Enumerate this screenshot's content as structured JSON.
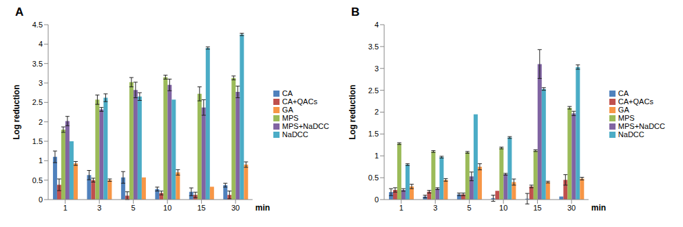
{
  "chart_data": [
    {
      "type": "bar",
      "title": "A",
      "x_label": "min",
      "y_label": "Log reduction",
      "categories": [
        "1",
        "3",
        "5",
        "10",
        "15",
        "30"
      ],
      "ylim": [
        0,
        4.5
      ],
      "yticks": [
        0,
        0.5,
        1,
        1.5,
        2,
        2.5,
        3,
        3.5,
        4,
        4.5
      ],
      "grid": false,
      "legend": "right",
      "series": [
        {
          "name": "CA",
          "color": "#4f81bd",
          "values": [
            1.1,
            0.63,
            0.57,
            0.27,
            0.2,
            0.37
          ],
          "errors": [
            0.15,
            0.12,
            0.15,
            0.05,
            0.1,
            0.05
          ]
        },
        {
          "name": "CA+QACs",
          "color": "#c0504d",
          "values": [
            0.38,
            0.5,
            0.1,
            0.17,
            0.12,
            0.12
          ],
          "errors": [
            0.15,
            0.05,
            0.1,
            0.05,
            0.07,
            0.1
          ]
        },
        {
          "name": "MPS",
          "color": "#9bbb59",
          "values": [
            1.8,
            2.57,
            3.02,
            3.15,
            2.72,
            3.13
          ],
          "errors": [
            0.07,
            0.12,
            0.12,
            0.05,
            0.18,
            0.05
          ]
        },
        {
          "name": "MPS+NaDCC",
          "color": "#8064a2",
          "values": [
            2.02,
            2.32,
            2.82,
            2.95,
            2.37,
            2.77
          ],
          "errors": [
            0.12,
            0.05,
            0.2,
            0.15,
            0.2,
            0.15
          ]
        },
        {
          "name": "NaDCC",
          "color": "#4bacc6",
          "values": [
            1.5,
            2.62,
            2.65,
            2.57,
            3.9,
            4.25
          ],
          "errors": [
            0,
            0.1,
            0.1,
            0,
            0.03,
            0.03
          ]
        },
        {
          "name": "GA",
          "color": "#f79646",
          "values": [
            0.93,
            0.5,
            0.57,
            0.7,
            0.33,
            0.9
          ],
          "errors": [
            0.05,
            0.03,
            0,
            0.07,
            0,
            0.07
          ]
        }
      ]
    },
    {
      "type": "bar",
      "title": "B",
      "x_label": "min",
      "y_label": "Log reduction",
      "categories": [
        "1",
        "3",
        "5",
        "10",
        "15",
        "30"
      ],
      "ylim": [
        0,
        4
      ],
      "yticks": [
        0,
        0.5,
        1,
        1.5,
        2,
        2.5,
        3,
        3.5,
        4
      ],
      "grid": false,
      "legend": "right",
      "series": [
        {
          "name": "CA",
          "color": "#4f81bd",
          "values": [
            0.17,
            0.07,
            0.12,
            0.03,
            0.02,
            0.07
          ],
          "errors": [
            0.08,
            0.03,
            0.03,
            0.07,
            0.12,
            0
          ]
        },
        {
          "name": "CA+QACs",
          "color": "#c0504d",
          "values": [
            0.22,
            0.18,
            0.12,
            0.2,
            0.3,
            0.45
          ],
          "errors": [
            0.05,
            0.03,
            0.03,
            0,
            0.03,
            0.12
          ]
        },
        {
          "name": "MPS",
          "color": "#9bbb59",
          "values": [
            1.28,
            1.1,
            1.08,
            1.18,
            1.12,
            2.1
          ],
          "errors": [
            0.02,
            0.02,
            0.02,
            0.02,
            0.02,
            0.03
          ]
        },
        {
          "name": "MPS+NaDCC",
          "color": "#8064a2",
          "values": [
            0.22,
            0.25,
            0.53,
            0.58,
            3.1,
            1.97
          ],
          "errors": [
            0.03,
            0.02,
            0.1,
            0.02,
            0.33,
            0.05
          ]
        },
        {
          "name": "NaDCC",
          "color": "#4bacc6",
          "values": [
            0.8,
            0.97,
            1.95,
            1.42,
            2.53,
            3.03
          ],
          "errors": [
            0.02,
            0.02,
            0,
            0.02,
            0.03,
            0.05
          ]
        },
        {
          "name": "GA",
          "color": "#f79646",
          "values": [
            0.3,
            0.45,
            0.75,
            0.4,
            0.4,
            0.48
          ],
          "errors": [
            0.05,
            0.03,
            0.07,
            0.07,
            0.02,
            0.03
          ]
        }
      ]
    }
  ]
}
